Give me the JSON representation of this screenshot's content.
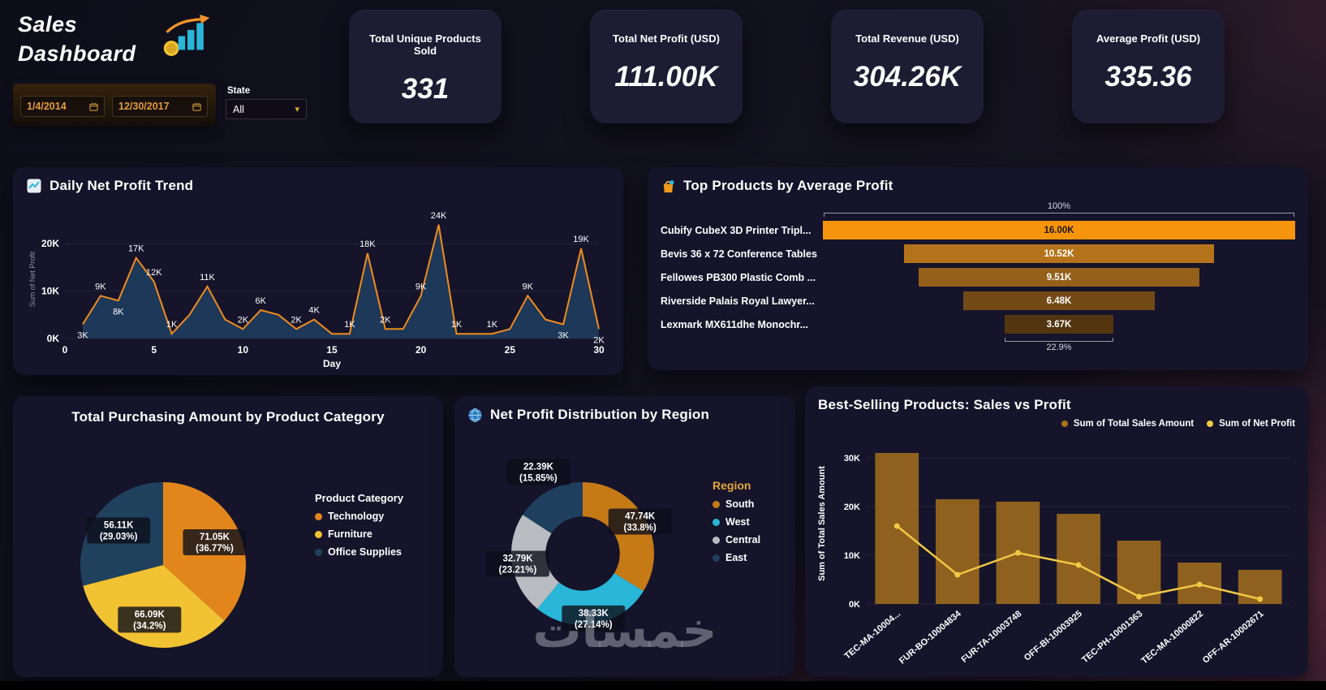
{
  "theme": {
    "card_bg": "#15142a",
    "kpi_bg": "#1d1c33",
    "accent_orange": "#f0922b",
    "accent_cyan": "#29b6d8",
    "accent_yellow": "#f1c232",
    "date_text": "#e39a3f"
  },
  "header": {
    "title_line1": "Sales",
    "title_line2": "Dashboard",
    "date_from": "1/4/2014",
    "date_to": "12/30/2017",
    "state_label": "State",
    "state_value": "All"
  },
  "kpis": [
    {
      "label": "Total Unique Products Sold",
      "value": "331"
    },
    {
      "label": "Total Net Profit (USD)",
      "value": "111.00K"
    },
    {
      "label": "Total Revenue (USD)",
      "value": "304.26K"
    },
    {
      "label": "Average Profit (USD)",
      "value": "335.36"
    }
  ],
  "watermark": "خمسات",
  "chart_data": [
    {
      "type": "area",
      "title": "Daily Net Profit Trend",
      "xlabel": "Day",
      "ylabel": "Sum of Net Profit",
      "ylim": [
        0,
        25
      ],
      "xticks": [
        0,
        5,
        10,
        15,
        20,
        25,
        30
      ],
      "yticks": [
        {
          "v": 0,
          "label": "0K"
        },
        {
          "v": 10,
          "label": "10K"
        },
        {
          "v": 20,
          "label": "20K"
        }
      ],
      "line_color": "#f08b1e",
      "fill_color": "#1e3c5c",
      "points": [
        [
          1,
          3
        ],
        [
          2,
          9
        ],
        [
          3,
          8
        ],
        [
          4,
          17
        ],
        [
          5,
          12
        ],
        [
          6,
          1
        ],
        [
          7,
          5
        ],
        [
          8,
          11
        ],
        [
          9,
          4
        ],
        [
          10,
          2
        ],
        [
          11,
          6
        ],
        [
          12,
          5
        ],
        [
          13,
          2
        ],
        [
          14,
          4
        ],
        [
          15,
          1
        ],
        [
          16,
          1
        ],
        [
          17,
          18
        ],
        [
          18,
          2
        ],
        [
          19,
          2
        ],
        [
          20,
          9
        ],
        [
          21,
          24
        ],
        [
          22,
          1
        ],
        [
          23,
          1
        ],
        [
          24,
          1
        ],
        [
          25,
          2
        ],
        [
          26,
          9
        ],
        [
          27,
          4
        ],
        [
          28,
          3
        ],
        [
          29,
          19
        ],
        [
          30,
          2
        ]
      ],
      "labels": [
        {
          "x": 1,
          "y": 3,
          "t": "3K",
          "pos": "below"
        },
        {
          "x": 2,
          "y": 9,
          "t": "9K",
          "pos": "above"
        },
        {
          "x": 3,
          "y": 8,
          "t": "8K",
          "pos": "below"
        },
        {
          "x": 4,
          "y": 17,
          "t": "17K",
          "pos": "above"
        },
        {
          "x": 5,
          "y": 12,
          "t": "12K",
          "pos": "above"
        },
        {
          "x": 6,
          "y": 1,
          "t": "1K",
          "pos": "above"
        },
        {
          "x": 8,
          "y": 11,
          "t": "11K",
          "pos": "above"
        },
        {
          "x": 10,
          "y": 2,
          "t": "2K",
          "pos": "above"
        },
        {
          "x": 11,
          "y": 6,
          "t": "6K",
          "pos": "above"
        },
        {
          "x": 13,
          "y": 2,
          "t": "2K",
          "pos": "above"
        },
        {
          "x": 14,
          "y": 4,
          "t": "4K",
          "pos": "above"
        },
        {
          "x": 16,
          "y": 1,
          "t": "1K",
          "pos": "above"
        },
        {
          "x": 17,
          "y": 18,
          "t": "18K",
          "pos": "above"
        },
        {
          "x": 18,
          "y": 2,
          "t": "2K",
          "pos": "above"
        },
        {
          "x": 20,
          "y": 9,
          "t": "9K",
          "pos": "above"
        },
        {
          "x": 21,
          "y": 24,
          "t": "24K",
          "pos": "above"
        },
        {
          "x": 22,
          "y": 1,
          "t": "1K",
          "pos": "above"
        },
        {
          "x": 24,
          "y": 1,
          "t": "1K",
          "pos": "above"
        },
        {
          "x": 26,
          "y": 9,
          "t": "9K",
          "pos": "above"
        },
        {
          "x": 28,
          "y": 3,
          "t": "3K",
          "pos": "below"
        },
        {
          "x": 29,
          "y": 19,
          "t": "19K",
          "pos": "above"
        },
        {
          "x": 30,
          "y": 2,
          "t": "2K",
          "pos": "below"
        }
      ]
    },
    {
      "type": "funnel",
      "title": "Top Products by Average Profit",
      "top_annotation": "100%",
      "bottom_annotation": "22.9%",
      "items": [
        {
          "label": "Cubify CubeX 3D Printer Tripl...",
          "value": "16.00K",
          "pct": 100,
          "color": "#f6940e",
          "value_color": "#1f1504"
        },
        {
          "label": "Bevis 36 x 72 Conference Tables",
          "value": "10.52K",
          "pct": 65.8,
          "color": "#b4731a",
          "value_color": "#ffffff"
        },
        {
          "label": "Fellowes PB300 Plastic Comb ...",
          "value": "9.51K",
          "pct": 59.4,
          "color": "#95601a",
          "value_color": "#ffffff"
        },
        {
          "label": "Riverside Palais Royal Lawyer...",
          "value": "6.48K",
          "pct": 40.5,
          "color": "#734a16",
          "value_color": "#ffffff"
        },
        {
          "label": "Lexmark MX611dhe Monochr...",
          "value": "3.67K",
          "pct": 22.9,
          "color": "#53350f",
          "value_color": "#ffffff"
        }
      ]
    },
    {
      "type": "pie",
      "title": "Total Purchasing Amount by Product Category",
      "legend_title": "Product Category",
      "slices": [
        {
          "name": "Technology",
          "label": "71.05K",
          "pct_label": "(36.77%)",
          "pct": 36.77,
          "color": "#e2861c"
        },
        {
          "name": "Furniture",
          "label": "66.09K",
          "pct_label": "(34.2%)",
          "pct": 34.2,
          "color": "#f1c232"
        },
        {
          "name": "Office Supplies",
          "label": "56.11K",
          "pct_label": "(29.03%)",
          "pct": 29.03,
          "color": "#20415e"
        }
      ]
    },
    {
      "type": "donut",
      "title": "Net Profit Distribution by Region",
      "legend_title": "Region",
      "slices": [
        {
          "name": "South",
          "label": "47.74K",
          "pct_label": "(33.8%)",
          "pct": 33.8,
          "color": "#c67a16"
        },
        {
          "name": "West",
          "label": "38.33K",
          "pct_label": "(27.14%)",
          "pct": 27.14,
          "color": "#29b6d8"
        },
        {
          "name": "Central",
          "label": "32.79K",
          "pct_label": "(23.21%)",
          "pct": 23.21,
          "color": "#b9bcc0"
        },
        {
          "name": "East",
          "label": "22.39K",
          "pct_label": "(15.85%)",
          "pct": 15.85,
          "color": "#1f3f5e"
        }
      ]
    },
    {
      "type": "bar",
      "title": "Best-Selling Products: Sales vs Profit",
      "ylabel": "Sum of Total Sales Amount",
      "ylim": [
        0,
        33
      ],
      "yticks": [
        {
          "v": 0,
          "label": "0K"
        },
        {
          "v": 10,
          "label": "10K"
        },
        {
          "v": 20,
          "label": "20K"
        },
        {
          "v": 30,
          "label": "30K"
        }
      ],
      "categories": [
        "TEC-MA-10004...",
        "FUR-BO-10004834",
        "FUR-TA-10003748",
        "OFF-BI-10003925",
        "TEC-PH-10001363",
        "TEC-MA-10000822",
        "OFF-AR-10002671"
      ],
      "series": [
        {
          "name": "Sum of Total Sales Amount",
          "kind": "bar",
          "color": "#a9731c",
          "values": [
            31,
            21.5,
            21,
            18.5,
            13,
            8.5,
            7
          ]
        },
        {
          "name": "Sum of Net Profit",
          "kind": "line",
          "color": "#f2c744",
          "values": [
            16,
            6,
            10.5,
            8,
            1.5,
            4,
            1
          ]
        }
      ]
    }
  ]
}
